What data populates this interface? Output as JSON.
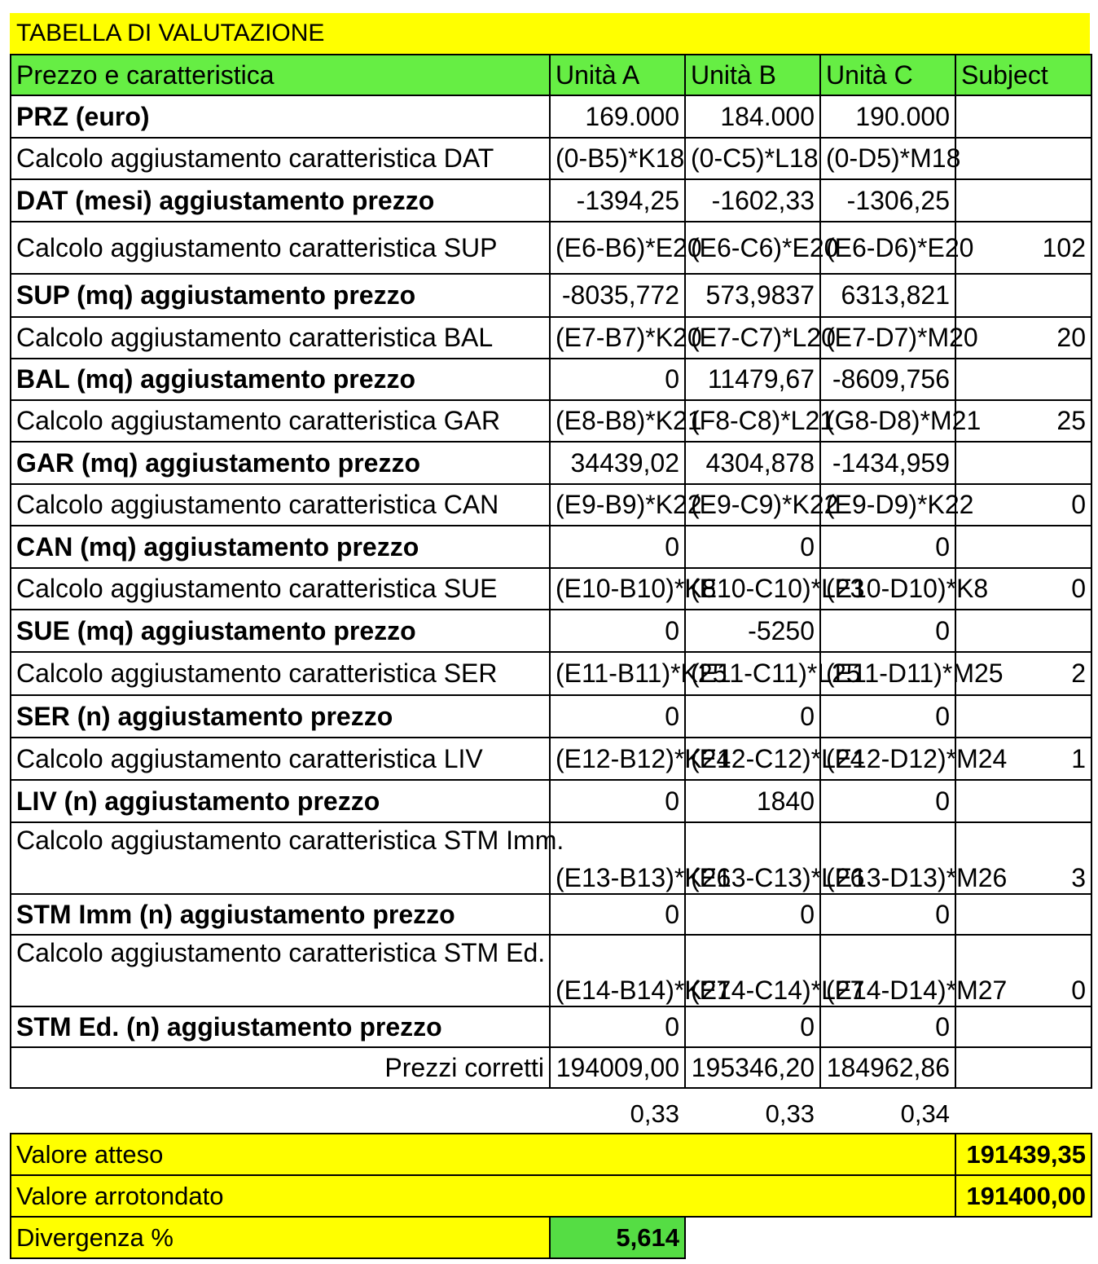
{
  "title": "TABELLA DI VALUTAZIONE",
  "header": {
    "feature_col": "Prezzo e caratteristica",
    "col_a": "Unità A",
    "col_b": "Unità B",
    "col_c": "Unità C",
    "col_subject": "Subject"
  },
  "rows": [
    {
      "type": "val",
      "label": "PRZ (euro)",
      "a": "169.000",
      "b": "184.000",
      "c": "190.000",
      "s": ""
    },
    {
      "type": "calc",
      "label": "Calcolo aggiustamento caratteristica DAT",
      "a": "(0-B5)*K18",
      "b": "(0-C5)*L18",
      "c": "(0-D5)*M18",
      "s": ""
    },
    {
      "type": "val",
      "label": "DAT (mesi) aggiustamento prezzo",
      "a": "-1394,25",
      "b": "-1602,33",
      "c": "-1306,25",
      "s": ""
    },
    {
      "type": "calc",
      "label": "Calcolo aggiustamento caratteristica SUP",
      "a": "(E6-B6)*E20",
      "b": "(E6-C6)*E20",
      "c": "(E6-D6)*E20",
      "s": "102"
    },
    {
      "type": "val",
      "label": "SUP (mq) aggiustamento prezzo",
      "a": "-8035,772",
      "b": "573,9837",
      "c": "6313,821",
      "s": ""
    },
    {
      "type": "calc",
      "label": "Calcolo aggiustamento caratteristica BAL",
      "a": "(E7-B7)*K20",
      "b": "(E7-C7)*L20",
      "c": "(E7-D7)*M20",
      "s": "20"
    },
    {
      "type": "val",
      "label": "BAL (mq) aggiustamento prezzo",
      "a": "0",
      "b": "11479,67",
      "c": "-8609,756",
      "s": ""
    },
    {
      "type": "calc",
      "label": "Calcolo aggiustamento caratteristica GAR",
      "a": "(E8-B8)*K21",
      "b": "(F8-C8)*L21",
      "c": "(G8-D8)*M21",
      "s": "25"
    },
    {
      "type": "val",
      "label": "GAR (mq) aggiustamento prezzo",
      "a": "34439,02",
      "b": "4304,878",
      "c": "-1434,959",
      "s": ""
    },
    {
      "type": "calc",
      "label": "Calcolo aggiustamento caratteristica CAN",
      "a": "(E9-B9)*K22",
      "b": "(E9-C9)*K22",
      "c": "(E9-D9)*K22",
      "s": "0"
    },
    {
      "type": "val",
      "label": "CAN (mq) aggiustamento prezzo",
      "a": "0",
      "b": "0",
      "c": "0",
      "s": ""
    },
    {
      "type": "calc",
      "label": "Calcolo aggiustamento caratteristica SUE",
      "a": "(E10-B10)*K8",
      "b": "(E10-C10)*L23",
      "c": "(E10-D10)*K8",
      "s": "0"
    },
    {
      "type": "val",
      "label": "SUE (mq) aggiustamento prezzo",
      "a": "0",
      "b": "-5250",
      "c": "0",
      "s": ""
    },
    {
      "type": "calc",
      "label": "Calcolo aggiustamento caratteristica SER",
      "a": "(E11-B11)*K25",
      "b": "(E11-C11)*L25",
      "c": "(E11-D11)*M25",
      "s": "2"
    },
    {
      "type": "val",
      "label": "SER (n) aggiustamento prezzo",
      "a": "0",
      "b": "0",
      "c": "0",
      "s": ""
    },
    {
      "type": "calc",
      "label": "Calcolo aggiustamento caratteristica LIV",
      "a": "(E12-B12)*K24",
      "b": "(E12-C12)*L24",
      "c": "(E12-D12)*M24",
      "s": "1"
    },
    {
      "type": "val",
      "label": "LIV (n) aggiustamento prezzo",
      "a": "0",
      "b": "1840",
      "c": "0",
      "s": ""
    },
    {
      "type": "calc",
      "label": "Calcolo aggiustamento caratteristica STM Imm.",
      "a": "(E13-B13)*K26",
      "b": "(E13-C13)*L26",
      "c": "(E13-D13)*M26",
      "s": "3"
    },
    {
      "type": "val",
      "label": "STM Imm (n) aggiustamento prezzo",
      "a": "0",
      "b": "0",
      "c": "0",
      "s": ""
    },
    {
      "type": "calc",
      "label": "Calcolo aggiustamento caratteristica STM Ed.",
      "a": "(E14-B14)*K27",
      "b": "(E14-C14)*L27",
      "c": "(E14-D14)*M27",
      "s": "0"
    },
    {
      "type": "val",
      "label": "STM Ed. (n) aggiustamento prezzo",
      "a": "0",
      "b": "0",
      "c": "0",
      "s": ""
    }
  ],
  "corrected": {
    "label": "Prezzi corretti",
    "a": "194009,00",
    "b": "195346,20",
    "c": "184962,86"
  },
  "weights": {
    "a": "0,33",
    "b": "0,33",
    "c": "0,34"
  },
  "summary": {
    "expected_label": "Valore atteso",
    "expected_value": "191439,35",
    "rounded_label": "Valore arrotondato",
    "rounded_value": "191400,00",
    "divergence_label": "Divergenza %",
    "divergence_value": "5,614"
  },
  "colors": {
    "title_bg": "#ffff00",
    "header_bg": "#66ee44",
    "calc_text": "#ff1a1a",
    "corrected_label": "#3a52c8",
    "divergence_bg": "#55dd44"
  }
}
